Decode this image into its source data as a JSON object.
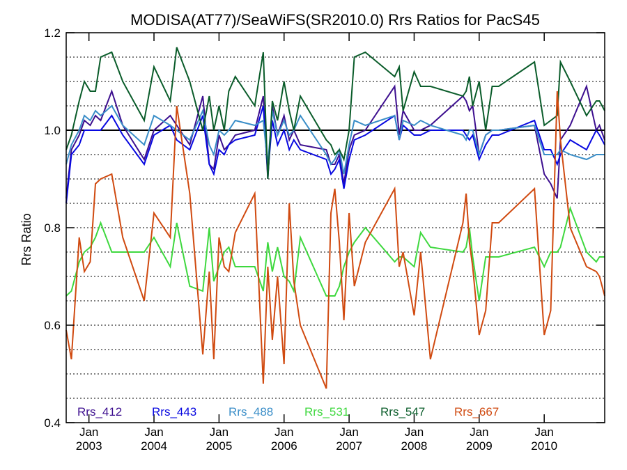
{
  "chart_data": {
    "type": "line",
    "title": "MODISA(AT77)/SeaWiFS(SR2010.0)  Rrs Ratios for PacS45",
    "ylabel": "Rrs Ratio",
    "xlabel": "",
    "ylim": [
      0.4,
      1.2
    ],
    "xlim": [
      2002.65,
      2010.93
    ],
    "yticks": [
      0.4,
      0.6,
      0.8,
      1.0,
      1.2
    ],
    "ytick_labels": [
      "0.4",
      "0.6",
      "0.8",
      "1.0",
      "1.2"
    ],
    "ygrid": [
      0.45,
      0.5,
      0.55,
      0.6,
      0.65,
      0.7,
      0.75,
      0.8,
      0.85,
      0.9,
      0.95,
      1.05,
      1.1,
      1.15,
      1.2
    ],
    "reference_line": 1.0,
    "xticks": [
      {
        "x": 2003.0,
        "month": "Jan",
        "year": "2003"
      },
      {
        "x": 2004.0,
        "month": "Jan",
        "year": "2004"
      },
      {
        "x": 2005.0,
        "month": "Jan",
        "year": "2005"
      },
      {
        "x": 2006.0,
        "month": "Jan",
        "year": "2006"
      },
      {
        "x": 2007.0,
        "month": "Jan",
        "year": "2007"
      },
      {
        "x": 2008.0,
        "month": "Jan",
        "year": "2008"
      },
      {
        "x": 2009.0,
        "month": "Jan",
        "year": "2009"
      },
      {
        "x": 2010.0,
        "month": "Jan",
        "year": "2010"
      }
    ],
    "grid": "horizontal dotted",
    "legend_placement": "bottom",
    "series": [
      {
        "name": "Rrs_412",
        "color": "#3d0f8f",
        "x": [
          2002.65,
          2002.73,
          2002.85,
          2002.93,
          2003.02,
          2003.1,
          2003.18,
          2003.35,
          2003.52,
          2003.85,
          2004.0,
          2004.25,
          2004.35,
          2004.55,
          2004.75,
          2004.85,
          2004.92,
          2005.0,
          2005.08,
          2005.15,
          2005.25,
          2005.55,
          2005.68,
          2005.75,
          2005.82,
          2005.9,
          2006.0,
          2006.08,
          2006.15,
          2006.25,
          2006.65,
          2006.72,
          2006.78,
          2006.85,
          2006.92,
          2007.0,
          2007.08,
          2007.25,
          2007.7,
          2007.77,
          2007.83,
          2008.0,
          2008.1,
          2008.25,
          2008.75,
          2008.8,
          2008.85,
          2008.9,
          2009.0,
          2009.1,
          2009.2,
          2009.3,
          2009.85,
          2010.0,
          2010.1,
          2010.2,
          2010.25,
          2010.4,
          2010.65,
          2010.8,
          2010.85,
          2010.93
        ],
        "y": [
          0.86,
          0.96,
          0.99,
          1.02,
          1.01,
          1.03,
          1.02,
          1.08,
          1.01,
          0.94,
          1.0,
          1.03,
          1.01,
          0.97,
          1.07,
          0.93,
          0.92,
          0.99,
          0.96,
          0.97,
          0.99,
          1.0,
          1.07,
          0.9,
          1.05,
          0.99,
          1.03,
          0.98,
          1.0,
          0.97,
          0.96,
          0.93,
          0.93,
          0.95,
          0.89,
          0.96,
          0.99,
          1.0,
          1.09,
          0.99,
          1.04,
          1.0,
          1.0,
          1.01,
          1.07,
          1.06,
          1.04,
          1.05,
          0.95,
          0.99,
          1.0,
          1.0,
          1.01,
          0.91,
          0.89,
          0.86,
          0.98,
          1.01,
          1.09,
          1.0,
          1.01,
          0.98
        ]
      },
      {
        "name": "Rrs_443",
        "color": "#0808e0",
        "x": [
          2002.65,
          2002.73,
          2002.85,
          2002.93,
          2003.02,
          2003.1,
          2003.18,
          2003.35,
          2003.52,
          2003.85,
          2004.0,
          2004.25,
          2004.35,
          2004.55,
          2004.75,
          2004.85,
          2004.92,
          2005.0,
          2005.08,
          2005.15,
          2005.25,
          2005.55,
          2005.68,
          2005.75,
          2005.82,
          2005.9,
          2006.0,
          2006.08,
          2006.15,
          2006.25,
          2006.65,
          2006.72,
          2006.78,
          2006.85,
          2006.92,
          2007.0,
          2007.08,
          2007.25,
          2007.7,
          2007.77,
          2007.83,
          2008.0,
          2008.1,
          2008.25,
          2008.75,
          2008.8,
          2008.85,
          2008.9,
          2009.0,
          2009.1,
          2009.2,
          2009.3,
          2009.85,
          2010.0,
          2010.1,
          2010.2,
          2010.25,
          2010.4,
          2010.65,
          2010.8,
          2010.85,
          2010.93
        ],
        "y": [
          0.85,
          0.95,
          0.97,
          1.0,
          1.0,
          1.0,
          1.0,
          1.03,
          0.99,
          0.93,
          0.99,
          1.01,
          0.98,
          0.96,
          1.03,
          0.93,
          0.91,
          0.96,
          0.95,
          0.97,
          0.98,
          0.99,
          1.05,
          0.91,
          1.02,
          0.97,
          1.0,
          0.96,
          0.98,
          0.96,
          0.94,
          0.91,
          0.92,
          0.94,
          0.88,
          0.94,
          0.98,
          0.99,
          1.03,
          0.98,
          1.01,
          0.99,
          0.99,
          1.0,
          1.0,
          0.99,
          0.98,
          0.99,
          0.94,
          0.97,
          0.99,
          0.99,
          1.02,
          0.96,
          0.96,
          0.93,
          0.95,
          0.98,
          0.96,
          1.0,
          0.99,
          0.97
        ]
      },
      {
        "name": "Rrs_488",
        "color": "#3a8ec8",
        "x": [
          2002.65,
          2002.73,
          2002.85,
          2002.93,
          2003.02,
          2003.1,
          2003.18,
          2003.35,
          2003.52,
          2003.85,
          2004.0,
          2004.25,
          2004.35,
          2004.55,
          2004.75,
          2004.85,
          2004.92,
          2005.0,
          2005.08,
          2005.15,
          2005.25,
          2005.55,
          2005.68,
          2005.75,
          2005.82,
          2005.9,
          2006.0,
          2006.08,
          2006.15,
          2006.25,
          2006.65,
          2006.72,
          2006.78,
          2006.85,
          2006.92,
          2007.0,
          2007.08,
          2007.25,
          2007.7,
          2007.77,
          2007.83,
          2008.0,
          2008.1,
          2008.25,
          2008.75,
          2008.8,
          2008.85,
          2008.9,
          2009.0,
          2009.1,
          2009.2,
          2009.3,
          2009.85,
          2010.0,
          2010.1,
          2010.2,
          2010.25,
          2010.4,
          2010.65,
          2010.8,
          2010.85,
          2010.93
        ],
        "y": [
          0.93,
          0.97,
          1.0,
          1.03,
          1.02,
          1.04,
          1.03,
          1.05,
          1.01,
          0.97,
          1.03,
          1.01,
          1.0,
          0.98,
          1.04,
          0.97,
          0.95,
          1.0,
          0.99,
          1.0,
          1.02,
          1.01,
          1.02,
          0.93,
          1.04,
          0.99,
          1.02,
          0.99,
          1.0,
          1.03,
          0.95,
          0.93,
          0.94,
          0.96,
          0.91,
          0.97,
          1.02,
          1.01,
          1.03,
          0.98,
          1.02,
          1.01,
          1.02,
          1.01,
          0.99,
          0.98,
          1.0,
          1.0,
          0.95,
          0.99,
          1.0,
          1.0,
          1.01,
          0.95,
          0.95,
          0.95,
          0.96,
          0.95,
          0.94,
          0.95,
          0.95,
          0.95
        ]
      },
      {
        "name": "Rrs_531",
        "color": "#3ed83e",
        "x": [
          2002.65,
          2002.73,
          2002.85,
          2002.93,
          2003.02,
          2003.1,
          2003.18,
          2003.35,
          2003.52,
          2003.85,
          2004.0,
          2004.25,
          2004.35,
          2004.55,
          2004.75,
          2004.85,
          2004.92,
          2005.0,
          2005.08,
          2005.15,
          2005.25,
          2005.55,
          2005.68,
          2005.75,
          2005.82,
          2005.9,
          2006.0,
          2006.08,
          2006.15,
          2006.25,
          2006.65,
          2006.72,
          2006.78,
          2006.85,
          2006.92,
          2007.0,
          2007.08,
          2007.25,
          2007.7,
          2007.77,
          2007.83,
          2008.0,
          2008.1,
          2008.25,
          2008.75,
          2008.8,
          2008.85,
          2008.9,
          2009.0,
          2009.1,
          2009.2,
          2009.3,
          2009.85,
          2010.0,
          2010.1,
          2010.2,
          2010.25,
          2010.4,
          2010.65,
          2010.8,
          2010.85,
          2010.93
        ],
        "y": [
          0.66,
          0.67,
          0.73,
          0.75,
          0.76,
          0.78,
          0.81,
          0.75,
          0.75,
          0.75,
          0.78,
          0.72,
          0.81,
          0.68,
          0.67,
          0.8,
          0.69,
          0.72,
          0.75,
          0.76,
          0.72,
          0.72,
          0.67,
          0.77,
          0.71,
          0.76,
          0.7,
          0.69,
          0.67,
          0.78,
          0.66,
          0.66,
          0.66,
          0.68,
          0.72,
          0.75,
          0.77,
          0.8,
          0.73,
          0.74,
          0.74,
          0.72,
          0.79,
          0.76,
          0.75,
          0.76,
          0.8,
          0.74,
          0.65,
          0.74,
          0.74,
          0.74,
          0.76,
          0.72,
          0.75,
          0.75,
          0.76,
          0.84,
          0.75,
          0.73,
          0.74,
          0.74
        ]
      },
      {
        "name": "Rrs_547",
        "color": "#0a5c2a",
        "x": [
          2002.65,
          2002.73,
          2002.85,
          2002.93,
          2003.02,
          2003.1,
          2003.18,
          2003.35,
          2003.52,
          2003.85,
          2004.0,
          2004.25,
          2004.35,
          2004.55,
          2004.75,
          2004.85,
          2004.92,
          2005.0,
          2005.08,
          2005.15,
          2005.25,
          2005.55,
          2005.68,
          2005.75,
          2005.82,
          2005.9,
          2006.0,
          2006.08,
          2006.15,
          2006.25,
          2006.65,
          2006.72,
          2006.78,
          2006.85,
          2006.92,
          2007.0,
          2007.08,
          2007.25,
          2007.7,
          2007.77,
          2007.83,
          2008.0,
          2008.1,
          2008.25,
          2008.75,
          2008.8,
          2008.85,
          2008.9,
          2009.0,
          2009.1,
          2009.2,
          2009.3,
          2009.85,
          2010.0,
          2010.1,
          2010.2,
          2010.25,
          2010.4,
          2010.65,
          2010.8,
          2010.85,
          2010.93
        ],
        "y": [
          0.96,
          0.99,
          1.06,
          1.1,
          1.08,
          1.08,
          1.15,
          1.16,
          1.1,
          1.02,
          1.13,
          1.06,
          1.17,
          1.1,
          1.0,
          1.07,
          1.0,
          1.05,
          1.0,
          1.08,
          1.11,
          1.05,
          1.16,
          0.9,
          1.06,
          1.02,
          1.1,
          1.04,
          1.0,
          1.07,
          0.98,
          0.97,
          0.95,
          0.96,
          0.94,
          1.0,
          1.15,
          1.16,
          1.11,
          1.13,
          1.04,
          1.12,
          1.09,
          1.09,
          1.07,
          1.08,
          1.11,
          1.05,
          1.1,
          1.0,
          1.09,
          1.09,
          1.14,
          1.01,
          1.02,
          1.03,
          1.14,
          1.1,
          1.03,
          1.06,
          1.06,
          1.04
        ]
      },
      {
        "name": "Rrs_667",
        "color": "#d04a10",
        "x": [
          2002.65,
          2002.73,
          2002.85,
          2002.93,
          2003.02,
          2003.1,
          2003.18,
          2003.35,
          2003.52,
          2003.85,
          2004.0,
          2004.25,
          2004.35,
          2004.55,
          2004.75,
          2004.85,
          2004.92,
          2005.0,
          2005.08,
          2005.15,
          2005.25,
          2005.55,
          2005.68,
          2005.75,
          2005.82,
          2005.9,
          2006.0,
          2006.08,
          2006.15,
          2006.25,
          2006.65,
          2006.72,
          2006.78,
          2006.85,
          2006.92,
          2007.0,
          2007.08,
          2007.25,
          2007.7,
          2007.77,
          2007.83,
          2008.0,
          2008.1,
          2008.25,
          2008.75,
          2008.8,
          2008.85,
          2008.9,
          2009.0,
          2009.1,
          2009.2,
          2009.3,
          2009.85,
          2010.0,
          2010.1,
          2010.2,
          2010.25,
          2010.4,
          2010.65,
          2010.8,
          2010.85,
          2010.93
        ],
        "y": [
          0.59,
          0.53,
          0.78,
          0.71,
          0.73,
          0.89,
          0.9,
          0.91,
          0.78,
          0.65,
          0.83,
          0.78,
          1.05,
          0.87,
          0.54,
          0.71,
          0.53,
          0.78,
          0.72,
          0.71,
          0.79,
          0.87,
          0.48,
          0.72,
          0.57,
          0.7,
          0.52,
          0.85,
          0.69,
          0.6,
          0.47,
          0.83,
          0.88,
          0.77,
          0.61,
          0.83,
          0.68,
          0.77,
          0.88,
          0.72,
          0.75,
          0.62,
          0.75,
          0.53,
          0.81,
          0.87,
          0.77,
          0.72,
          0.58,
          0.63,
          0.81,
          0.81,
          0.88,
          0.58,
          0.63,
          1.08,
          0.98,
          0.8,
          0.72,
          0.71,
          0.7,
          0.66
        ]
      }
    ]
  }
}
